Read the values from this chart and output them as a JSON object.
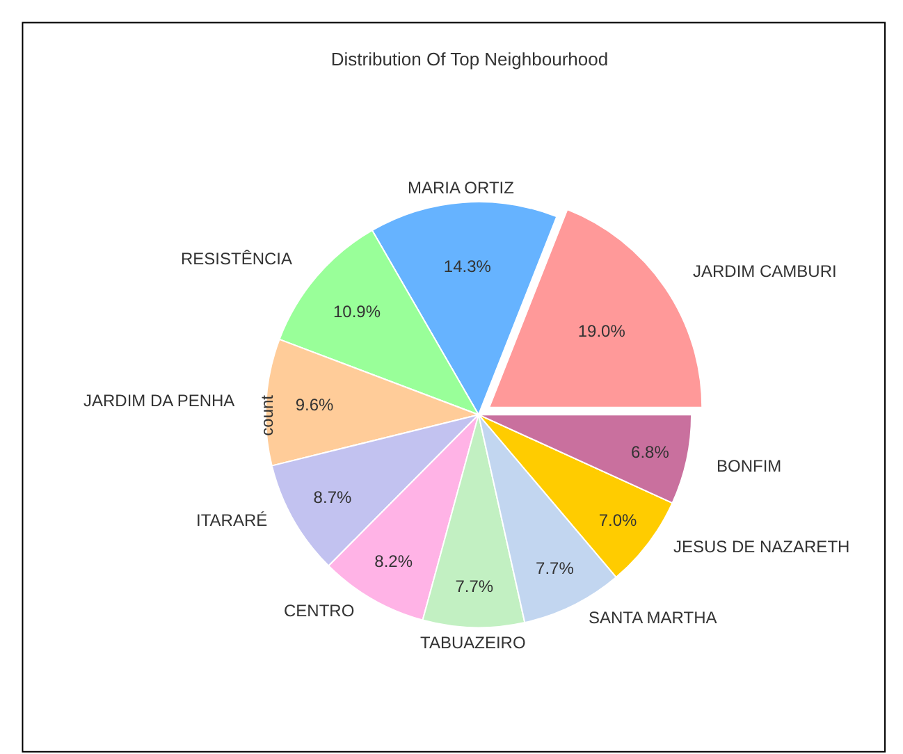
{
  "chart_data": {
    "type": "pie",
    "title": "Distribution Of Top Neighbourhood",
    "ylabel": "count",
    "categories": [
      "JARDIM CAMBURI",
      "MARIA ORTIZ",
      "RESISTÊNCIA",
      "JARDIM DA PENHA",
      "ITARARÉ",
      "CENTRO",
      "TABUAZEIRO",
      "SANTA MARTHA",
      "JESUS DE NAZARETH",
      "BONFIM"
    ],
    "values": [
      19.0,
      14.3,
      10.9,
      9.6,
      8.7,
      8.2,
      7.7,
      7.7,
      7.0,
      6.8
    ],
    "value_labels": [
      "19.0%",
      "14.3%",
      "10.9%",
      "9.6%",
      "8.7%",
      "8.2%",
      "7.7%",
      "7.7%",
      "7.0%",
      "6.8%"
    ],
    "colors": [
      "#ff9999",
      "#66b3ff",
      "#99ff99",
      "#ffcc99",
      "#c2c2f0",
      "#ffb3e6",
      "#c2f0c2",
      "#c2d6f0",
      "#ffcc00",
      "#c9709e"
    ],
    "legend": false
  }
}
